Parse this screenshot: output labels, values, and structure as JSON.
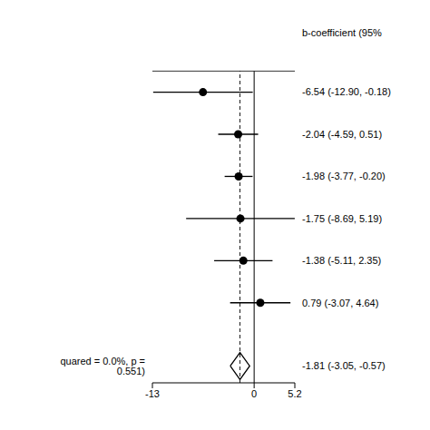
{
  "chart_data": {
    "type": "forest",
    "title": "b-coefficient (95%",
    "annotations": [
      "quared = 0.0%, p = 0.551)"
    ],
    "values": [
      -6.54,
      -2.04,
      -1.98,
      -1.75,
      -1.38,
      0.79
    ],
    "ci_low": [
      -12.9,
      -4.59,
      -3.77,
      -8.69,
      -5.11,
      -3.07
    ],
    "ci_high": [
      -0.18,
      0.51,
      -0.2,
      5.19,
      2.35,
      4.64
    ],
    "value_labels": [
      "-6.54 (-12.90, -0.18)",
      "-2.04 (-4.59, 0.51)",
      "-1.98 (-3.77, -0.20)",
      "-1.75 (-8.69, 5.19)",
      "-1.38 (-5.11, 2.35)",
      "0.79 (-3.07, 4.64)"
    ],
    "pooled": {
      "value": -1.81,
      "ci_low": -3.05,
      "ci_high": -0.57,
      "label": "-1.81 (-3.05, -0.57)"
    },
    "reference_line": 0,
    "xlim": [
      -13,
      5.2
    ],
    "xticks": [
      -13,
      0,
      5.2
    ],
    "color": "#000000"
  }
}
